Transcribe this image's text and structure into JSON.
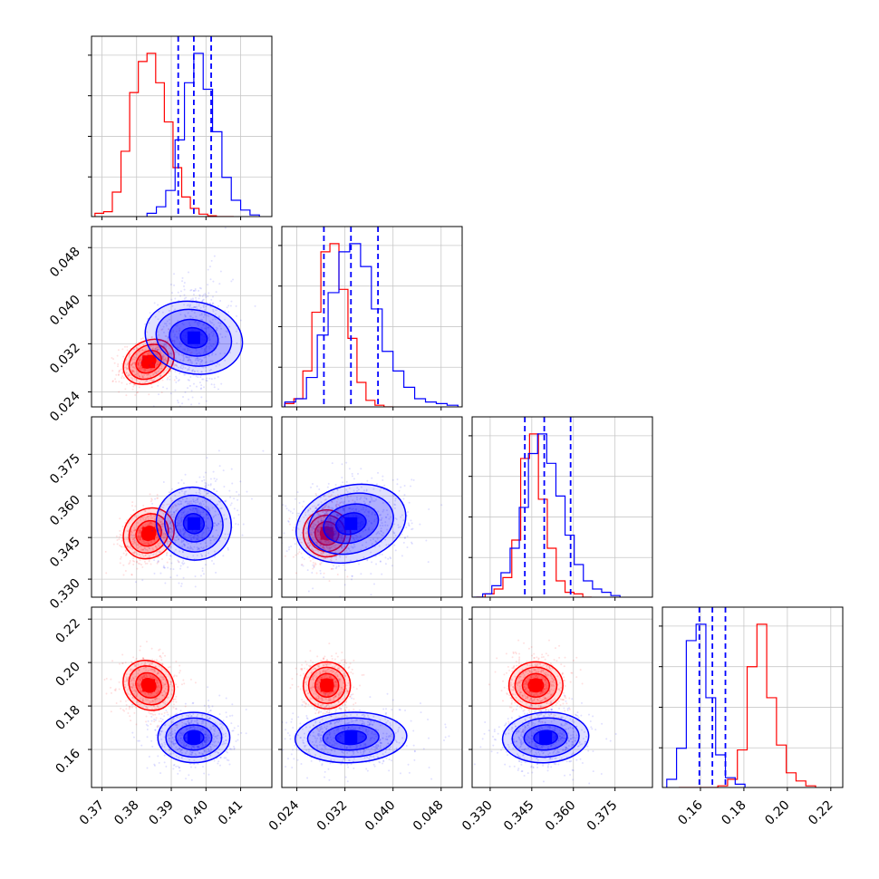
{
  "chart_data": {
    "type": "corner",
    "grid": true,
    "parameters": [
      {
        "xlim": [
          0.367,
          0.419
        ],
        "ticks": [
          "0.37",
          "0.38",
          "0.39",
          "0.40",
          "0.41"
        ],
        "tick_values": [
          0.37,
          0.38,
          0.39,
          0.4,
          0.41
        ]
      },
      {
        "xlim": [
          0.0215,
          0.0515
        ],
        "ticks": [
          "0.024",
          "0.032",
          "0.040",
          "0.048"
        ],
        "tick_values": [
          0.024,
          0.032,
          0.04,
          0.048
        ]
      },
      {
        "xlim": [
          0.3235,
          0.3885
        ],
        "ticks": [
          "0.330",
          "0.345",
          "0.360",
          "0.375"
        ],
        "tick_values": [
          0.33,
          0.345,
          0.36,
          0.375
        ]
      },
      {
        "xlim": [
          0.1425,
          0.2255
        ],
        "ticks": [
          "0.16",
          "0.18",
          "0.20",
          "0.22"
        ],
        "tick_values": [
          0.16,
          0.18,
          0.2,
          0.22
        ]
      }
    ],
    "series": [
      {
        "color": "#ff0000",
        "mean": [
          0.3835,
          0.029,
          0.3465,
          0.1895
        ],
        "std": [
          0.0036,
          0.0018,
          0.0045,
          0.0057
        ],
        "corr": {
          "0-1": 0.3,
          "0-2": 0.35,
          "1-2": 0.2,
          "0-3": -0.05,
          "1-3": 0.0,
          "2-3": 0.0
        },
        "hist": {
          "0": {
            "start": 0.368,
            "step": 0.0025,
            "values": [
              0.02,
              0.03,
              0.15,
              0.4,
              0.76,
              0.95,
              1.0,
              0.82,
              0.58,
              0.3,
              0.12,
              0.05,
              0.015,
              0.005,
              0.0,
              0.0
            ]
          },
          "1": {
            "start": 0.022,
            "step": 0.0015,
            "values": [
              0.02,
              0.05,
              0.22,
              0.58,
              0.95,
              1.0,
              0.72,
              0.42,
              0.15,
              0.04,
              0.01,
              0.0
            ]
          },
          "2": {
            "start": 0.325,
            "step": 0.0032,
            "values": [
              0.0,
              0.02,
              0.05,
              0.12,
              0.35,
              0.85,
              1.0,
              0.6,
              0.3,
              0.1,
              0.03,
              0.02,
              0.0
            ]
          },
          "3": {
            "start": 0.15,
            "step": 0.0045,
            "values": [
              0.0,
              0.0,
              0.0,
              0.0,
              0.01,
              0.05,
              0.23,
              0.74,
              1.0,
              0.55,
              0.26,
              0.09,
              0.04,
              0.01
            ]
          }
        }
      },
      {
        "color": "#0000ff",
        "mean": [
          0.3965,
          0.033,
          0.35,
          0.1655
        ],
        "std": [
          0.0048,
          0.0043,
          0.0072,
          0.0061
        ],
        "corr": {
          "0-1": 0.2,
          "0-2": 0.3,
          "1-2": 0.15,
          "0-3": 0.0,
          "1-3": 0.05,
          "2-3": 0.05
        },
        "quantiles": {
          "0": [
            0.392,
            0.3965,
            0.4015
          ],
          "1": [
            0.0285,
            0.033,
            0.0375
          ],
          "2": [
            0.3425,
            0.3495,
            0.359
          ],
          "3": [
            0.1595,
            0.1655,
            0.1715
          ]
        },
        "hist": {
          "0": {
            "start": 0.383,
            "step": 0.0027,
            "values": [
              0.02,
              0.06,
              0.16,
              0.47,
              0.82,
              1.0,
              0.78,
              0.52,
              0.24,
              0.1,
              0.04,
              0.01
            ]
          },
          "1": {
            "start": 0.022,
            "step": 0.0018,
            "values": [
              0.03,
              0.05,
              0.18,
              0.44,
              0.7,
              0.95,
              1.0,
              0.86,
              0.6,
              0.34,
              0.22,
              0.12,
              0.05,
              0.03,
              0.02,
              0.01
            ]
          },
          "2": {
            "start": 0.324,
            "step": 0.0033,
            "values": [
              0.0,
              0.02,
              0.07,
              0.15,
              0.3,
              0.55,
              0.88,
              1.0,
              0.82,
              0.62,
              0.38,
              0.2,
              0.1,
              0.05,
              0.03,
              0.01
            ]
          },
          "3": {
            "start": 0.1445,
            "step": 0.0045,
            "values": [
              0.05,
              0.24,
              0.9,
              1.0,
              0.55,
              0.2,
              0.06,
              0.02
            ]
          }
        }
      }
    ]
  }
}
